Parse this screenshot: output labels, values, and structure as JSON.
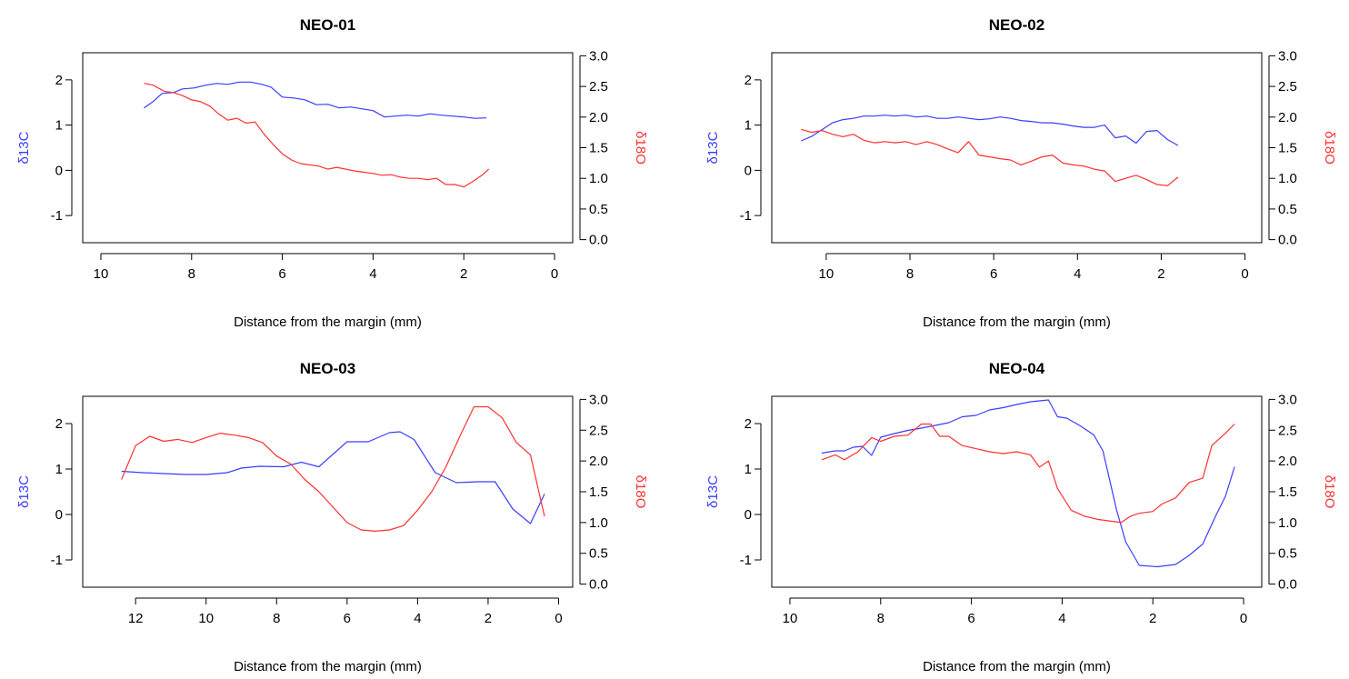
{
  "colors": {
    "d13c": "#3a3cff",
    "d18o": "#ff3030",
    "axis": "#000000"
  },
  "chart_data": [
    {
      "type": "line",
      "title": "NEO-01",
      "xlabel": "Distance from the margin (mm)",
      "ylabel_left": "δ13C",
      "ylabel_right": "δ18O",
      "xlim": [
        10.4,
        -0.4
      ],
      "xticks": [
        10,
        8,
        6,
        4,
        2,
        0
      ],
      "ylim_left": [
        -1.6,
        2.6
      ],
      "yticks_left": [
        -1,
        0,
        1,
        2
      ],
      "ylim_right": [
        -0.05,
        3.05
      ],
      "yticks_right": [
        "0.0",
        "0.5",
        "1.0",
        "1.5",
        "2.0",
        "2.5",
        "3.0"
      ],
      "series": [
        {
          "axis": "left",
          "color": "#3a3cff",
          "x": [
            9.05,
            8.85,
            8.65,
            8.4,
            8.2,
            7.95,
            7.7,
            7.45,
            7.2,
            6.95,
            6.7,
            6.45,
            6.25,
            6.0,
            5.75,
            5.5,
            5.25,
            5.0,
            4.75,
            4.5,
            4.25,
            4.0,
            3.75,
            3.5,
            3.25,
            3.0,
            2.75,
            2.5,
            2.25,
            2.0,
            1.75,
            1.5
          ],
          "y": [
            1.38,
            1.52,
            1.7,
            1.72,
            1.8,
            1.82,
            1.88,
            1.92,
            1.9,
            1.95,
            1.95,
            1.9,
            1.84,
            1.62,
            1.6,
            1.56,
            1.45,
            1.46,
            1.38,
            1.4,
            1.36,
            1.32,
            1.18,
            1.2,
            1.22,
            1.2,
            1.25,
            1.22,
            1.2,
            1.18,
            1.15,
            1.16
          ]
        },
        {
          "axis": "right",
          "color": "#ff3030",
          "x": [
            9.05,
            8.85,
            8.6,
            8.4,
            8.2,
            8.0,
            7.8,
            7.6,
            7.4,
            7.2,
            7.0,
            6.8,
            6.6,
            6.4,
            6.2,
            6.0,
            5.8,
            5.6,
            5.4,
            5.2,
            5.0,
            4.8,
            4.6,
            4.4,
            4.2,
            4.0,
            3.8,
            3.6,
            3.4,
            3.2,
            3.0,
            2.8,
            2.6,
            2.4,
            2.2,
            2.0,
            1.8,
            1.6,
            1.45
          ],
          "y": [
            2.55,
            2.52,
            2.42,
            2.4,
            2.35,
            2.28,
            2.25,
            2.18,
            2.05,
            1.95,
            1.98,
            1.9,
            1.92,
            1.72,
            1.55,
            1.4,
            1.3,
            1.24,
            1.22,
            1.2,
            1.15,
            1.18,
            1.15,
            1.12,
            1.1,
            1.08,
            1.05,
            1.06,
            1.02,
            1.0,
            1.0,
            0.98,
            1.0,
            0.9,
            0.9,
            0.86,
            0.95,
            1.05,
            1.15
          ]
        }
      ]
    },
    {
      "type": "line",
      "title": "NEO-02",
      "xlabel": "Distance from the margin (mm)",
      "ylabel_left": "δ13C",
      "ylabel_right": "δ18O",
      "xlim": [
        11.3,
        -0.4
      ],
      "xticks": [
        10,
        8,
        6,
        4,
        2,
        0
      ],
      "ylim_left": [
        -1.6,
        2.6
      ],
      "yticks_left": [
        -1,
        0,
        1,
        2
      ],
      "ylim_right": [
        -0.05,
        3.05
      ],
      "yticks_right": [
        "0.0",
        "0.5",
        "1.0",
        "1.5",
        "2.0",
        "2.5",
        "3.0"
      ],
      "series": [
        {
          "axis": "left",
          "color": "#3a3cff",
          "x": [
            10.6,
            10.35,
            10.1,
            9.85,
            9.6,
            9.35,
            9.1,
            8.85,
            8.6,
            8.35,
            8.1,
            7.85,
            7.6,
            7.35,
            7.1,
            6.85,
            6.6,
            6.35,
            6.1,
            5.85,
            5.6,
            5.35,
            5.1,
            4.85,
            4.6,
            4.35,
            4.1,
            3.85,
            3.6,
            3.35,
            3.1,
            2.85,
            2.6,
            2.35,
            2.1,
            1.85,
            1.6
          ],
          "y": [
            0.65,
            0.75,
            0.9,
            1.05,
            1.12,
            1.15,
            1.2,
            1.2,
            1.22,
            1.2,
            1.22,
            1.18,
            1.2,
            1.15,
            1.15,
            1.18,
            1.15,
            1.12,
            1.14,
            1.18,
            1.15,
            1.1,
            1.08,
            1.05,
            1.05,
            1.02,
            0.98,
            0.95,
            0.95,
            1.0,
            0.72,
            0.76,
            0.6,
            0.86,
            0.88,
            0.68,
            0.55
          ]
        },
        {
          "axis": "right",
          "color": "#ff3030",
          "x": [
            10.6,
            10.35,
            10.1,
            9.85,
            9.6,
            9.35,
            9.1,
            8.85,
            8.6,
            8.35,
            8.1,
            7.85,
            7.6,
            7.35,
            7.1,
            6.85,
            6.6,
            6.35,
            6.1,
            5.85,
            5.6,
            5.35,
            5.1,
            4.85,
            4.6,
            4.35,
            4.1,
            3.85,
            3.6,
            3.35,
            3.1,
            2.85,
            2.6,
            2.35,
            2.1,
            1.85,
            1.6
          ],
          "y": [
            1.8,
            1.75,
            1.78,
            1.72,
            1.68,
            1.72,
            1.62,
            1.58,
            1.6,
            1.58,
            1.6,
            1.55,
            1.6,
            1.55,
            1.48,
            1.42,
            1.6,
            1.38,
            1.35,
            1.32,
            1.3,
            1.22,
            1.28,
            1.35,
            1.38,
            1.25,
            1.22,
            1.2,
            1.15,
            1.12,
            0.95,
            1.0,
            1.05,
            0.98,
            0.9,
            0.88,
            1.02
          ]
        }
      ]
    },
    {
      "type": "line",
      "title": "NEO-03",
      "xlabel": "Distance from the margin (mm)",
      "ylabel_left": "δ13C",
      "ylabel_right": "δ18O",
      "xlim": [
        13.5,
        -0.4
      ],
      "xticks": [
        12,
        10,
        8,
        6,
        4,
        2,
        0
      ],
      "ylim_left": [
        -1.6,
        2.6
      ],
      "yticks_left": [
        -1,
        0,
        1,
        2
      ],
      "ylim_right": [
        -0.05,
        3.05
      ],
      "yticks_right": [
        "0.0",
        "0.5",
        "1.0",
        "1.5",
        "2.0",
        "2.5",
        "3.0"
      ],
      "series": [
        {
          "axis": "left",
          "color": "#3a3cff",
          "x": [
            12.4,
            11.8,
            11.2,
            10.6,
            10.0,
            9.4,
            9.0,
            8.5,
            7.8,
            7.3,
            6.8,
            6.0,
            5.4,
            4.8,
            4.5,
            4.1,
            3.5,
            2.9,
            2.3,
            1.8,
            1.3,
            0.8,
            0.4
          ],
          "y": [
            0.95,
            0.92,
            0.9,
            0.88,
            0.88,
            0.92,
            1.02,
            1.06,
            1.05,
            1.15,
            1.05,
            1.6,
            1.6,
            1.8,
            1.82,
            1.65,
            0.92,
            0.7,
            0.72,
            0.72,
            0.12,
            -0.2,
            0.45
          ]
        },
        {
          "axis": "right",
          "color": "#ff3030",
          "x": [
            12.4,
            12.0,
            11.6,
            11.2,
            10.8,
            10.4,
            10.0,
            9.6,
            9.2,
            8.8,
            8.4,
            8.0,
            7.6,
            7.2,
            6.8,
            6.4,
            6.0,
            5.6,
            5.2,
            4.8,
            4.4,
            4.0,
            3.6,
            3.2,
            2.8,
            2.4,
            2.0,
            1.6,
            1.2,
            0.8,
            0.4
          ],
          "y": [
            1.7,
            2.25,
            2.4,
            2.32,
            2.35,
            2.3,
            2.38,
            2.45,
            2.42,
            2.38,
            2.3,
            2.08,
            1.95,
            1.7,
            1.5,
            1.25,
            1.0,
            0.88,
            0.86,
            0.88,
            0.95,
            1.2,
            1.5,
            1.9,
            2.4,
            2.88,
            2.88,
            2.7,
            2.3,
            2.1,
            1.1
          ]
        }
      ]
    },
    {
      "type": "line",
      "title": "NEO-04",
      "xlabel": "Distance from the margin (mm)",
      "ylabel_left": "δ13C",
      "ylabel_right": "δ18O",
      "xlim": [
        10.4,
        -0.4
      ],
      "xticks": [
        10,
        8,
        6,
        4,
        2,
        0
      ],
      "ylim_left": [
        -1.6,
        2.6
      ],
      "yticks_left": [
        -1,
        0,
        1,
        2
      ],
      "ylim_right": [
        -0.05,
        3.05
      ],
      "yticks_right": [
        "0.0",
        "0.5",
        "1.0",
        "1.5",
        "2.0",
        "2.5",
        "3.0"
      ],
      "series": [
        {
          "axis": "left",
          "color": "#3a3cff",
          "x": [
            9.3,
            9.0,
            8.8,
            8.6,
            8.4,
            8.2,
            8.0,
            7.7,
            7.4,
            7.1,
            6.8,
            6.5,
            6.2,
            5.9,
            5.6,
            5.3,
            5.0,
            4.7,
            4.5,
            4.3,
            4.1,
            3.9,
            3.6,
            3.3,
            3.1,
            2.8,
            2.6,
            2.3,
            1.9,
            1.5,
            1.2,
            0.9,
            0.6,
            0.4,
            0.2
          ],
          "y": [
            1.35,
            1.4,
            1.4,
            1.48,
            1.5,
            1.3,
            1.7,
            1.78,
            1.85,
            1.9,
            1.96,
            2.02,
            2.15,
            2.18,
            2.3,
            2.35,
            2.42,
            2.48,
            2.5,
            2.52,
            2.15,
            2.12,
            1.95,
            1.75,
            1.4,
            0.1,
            -0.6,
            -1.12,
            -1.15,
            -1.1,
            -0.9,
            -0.65,
            0.0,
            0.4,
            1.05
          ]
        },
        {
          "axis": "right",
          "color": "#ff3030",
          "x": [
            9.3,
            9.0,
            8.8,
            8.5,
            8.2,
            8.0,
            7.7,
            7.4,
            7.1,
            6.9,
            6.7,
            6.5,
            6.2,
            5.9,
            5.6,
            5.3,
            5.0,
            4.7,
            4.5,
            4.3,
            4.1,
            3.8,
            3.5,
            3.2,
            2.9,
            2.7,
            2.5,
            2.3,
            2.0,
            1.8,
            1.5,
            1.2,
            0.9,
            0.7,
            0.4,
            0.2
          ],
          "y": [
            2.02,
            2.1,
            2.02,
            2.15,
            2.38,
            2.32,
            2.4,
            2.42,
            2.6,
            2.6,
            2.4,
            2.4,
            2.25,
            2.2,
            2.15,
            2.12,
            2.15,
            2.1,
            1.9,
            2.0,
            1.55,
            1.2,
            1.1,
            1.05,
            1.02,
            1.0,
            1.1,
            1.15,
            1.18,
            1.3,
            1.4,
            1.65,
            1.72,
            2.25,
            2.45,
            2.6
          ]
        }
      ]
    }
  ]
}
